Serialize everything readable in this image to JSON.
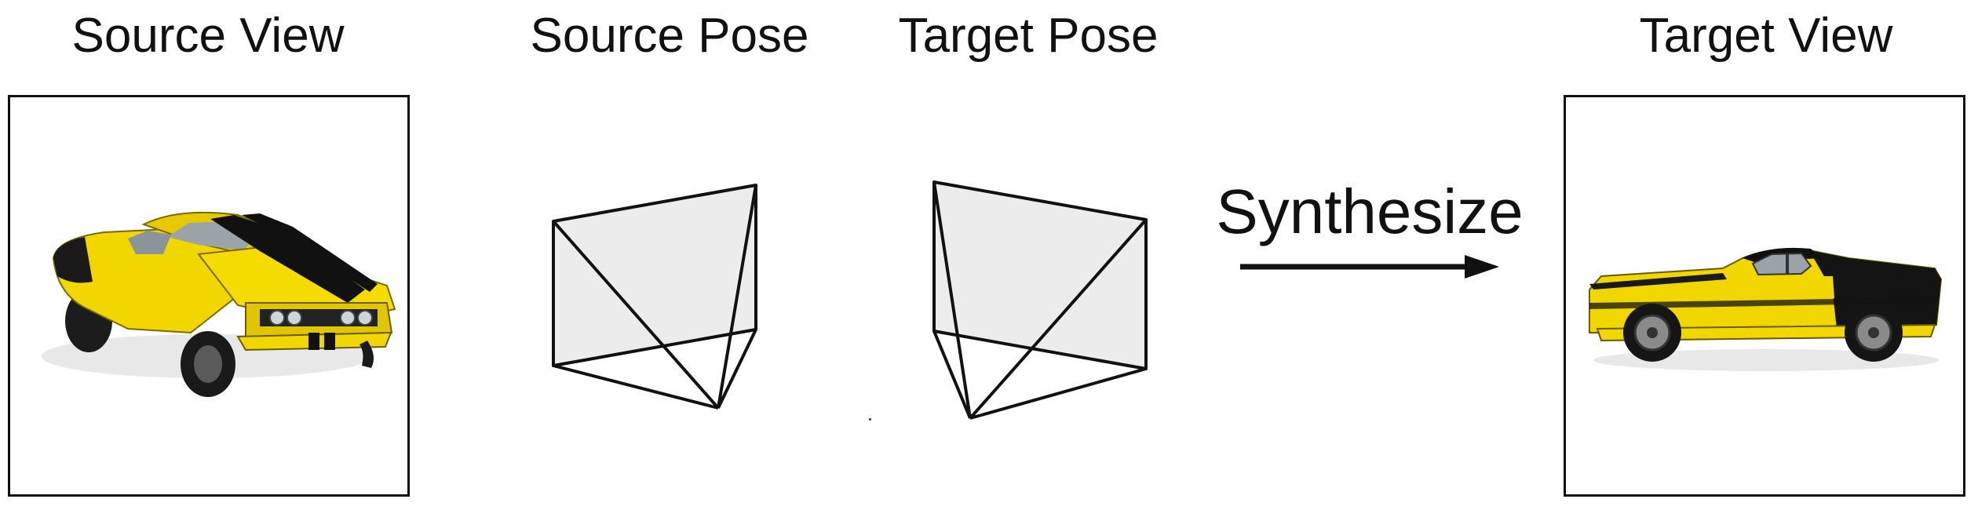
{
  "labels": {
    "source_view": "Source View",
    "source_pose": "Source Pose",
    "target_pose": "Target Pose",
    "target_view": "Target View"
  },
  "action": {
    "label": "Synthesize"
  },
  "images": {
    "source": {
      "subject": "yellow muscle car with black racing stripes, front three-quarter view",
      "body_color": "#f2d600",
      "stripe_color": "#111111"
    },
    "target": {
      "subject": "yellow muscle car with black racing stripes, side view",
      "body_color": "#f2d600",
      "stripe_color": "#111111"
    }
  },
  "colors": {
    "line": "#111111",
    "camera_fill": "#ececec",
    "frame_border": "#111111"
  },
  "icons": {
    "source_pose": "camera-frustum-icon",
    "target_pose": "camera-frustum-icon",
    "arrow": "arrow-right-icon"
  }
}
